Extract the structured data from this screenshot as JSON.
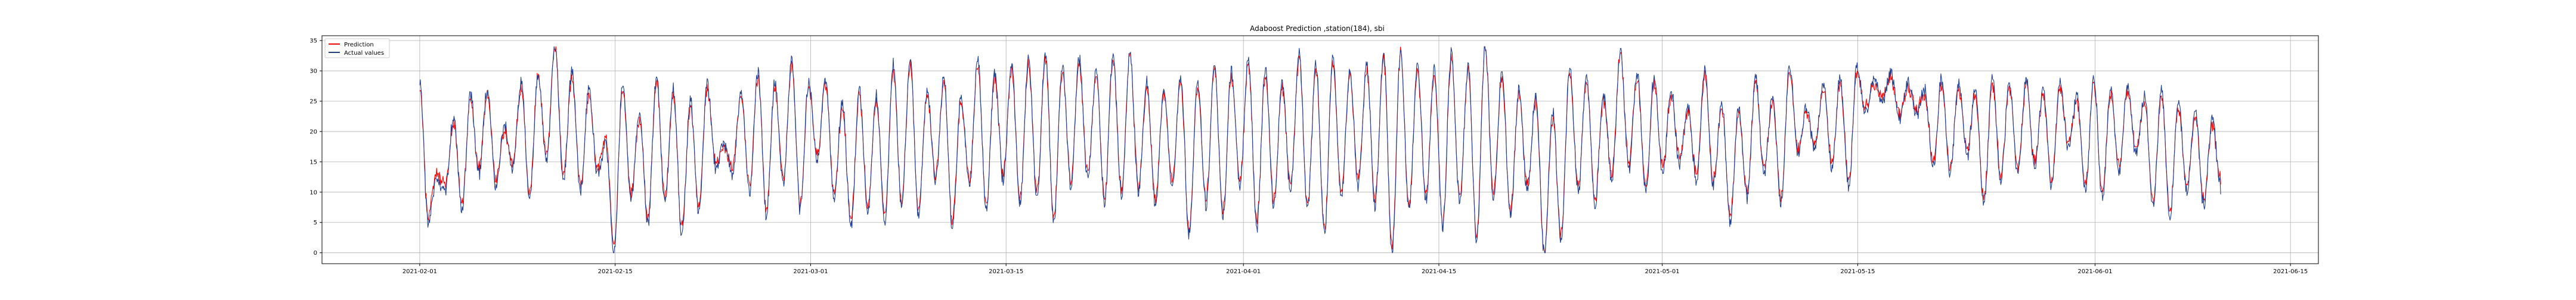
{
  "chart_data": {
    "type": "line",
    "title": "Adaboost Prediction ,station(184), sbi",
    "xlabel": "",
    "ylabel": "",
    "x_ticks": [
      "2021-02-01",
      "2021-02-15",
      "2021-03-01",
      "2021-03-15",
      "2021-04-01",
      "2021-04-15",
      "2021-05-01",
      "2021-05-15",
      "2021-06-01",
      "2021-06-15"
    ],
    "y_ticks": [
      "0",
      "5",
      "10",
      "15",
      "20",
      "25",
      "30",
      "35"
    ],
    "ylim": [
      -1.8,
      35.8
    ],
    "xlim": [
      "2021-01-25",
      "2021-06-17"
    ],
    "grid": true,
    "legend_position": "top-left",
    "series": [
      {
        "name": "Prediction",
        "color": "#ff0000",
        "start": "2021-02-01",
        "end": "2021-06-10",
        "points_per_day": 2,
        "y_range": [
          0,
          34
        ],
        "values": [
          27,
          6,
          13,
          11,
          21,
          8,
          25,
          14,
          26,
          12,
          20,
          15,
          27,
          10,
          29,
          16,
          34,
          13,
          29,
          11,
          26,
          14,
          19,
          1,
          27,
          10,
          22,
          6,
          28,
          9,
          26,
          4,
          24,
          8,
          27,
          15,
          17,
          14,
          26,
          11,
          29,
          7,
          27,
          12,
          31,
          8,
          27,
          16,
          28,
          10,
          24,
          5,
          26,
          8,
          25,
          6,
          30,
          9,
          31,
          7,
          26,
          13,
          28,
          5,
          25,
          12,
          31,
          8,
          29,
          13,
          30,
          9,
          31,
          10,
          32,
          6,
          30,
          12,
          31,
          13,
          29,
          9,
          32,
          10,
          33,
          11,
          27,
          9,
          26,
          12,
          28,
          4,
          27,
          9,
          30,
          7,
          29,
          12,
          31,
          5,
          29,
          9,
          27,
          11,
          32,
          8,
          30,
          4,
          31,
          10,
          29,
          12,
          30,
          9,
          32,
          1,
          33,
          8,
          30,
          10,
          29,
          5,
          32,
          9,
          30,
          3,
          34,
          10,
          29,
          7,
          26,
          11,
          25,
          0,
          22,
          3,
          30,
          11,
          28,
          9,
          25,
          13,
          33,
          15,
          29,
          11,
          28,
          14,
          26,
          16,
          23,
          13,
          29,
          12,
          24,
          6,
          23,
          10,
          28,
          14,
          25,
          9,
          30,
          17,
          23,
          18,
          27,
          15,
          28,
          12,
          30,
          24,
          28,
          26,
          29,
          23,
          27,
          24,
          26,
          15,
          28,
          14,
          27,
          17,
          26,
          9,
          28,
          13,
          27,
          14,
          28,
          15,
          26,
          12,
          27,
          18,
          25,
          11,
          28,
          10,
          26,
          14,
          27,
          17,
          25,
          8,
          26,
          7,
          24,
          11,
          22,
          9,
          21,
          12
        ]
      },
      {
        "name": "Actual values",
        "color": "#1f3f8f",
        "start": "2021-02-01",
        "end": "2021-06-10",
        "points_per_day": 2,
        "y_range": [
          0,
          34
        ],
        "values": [
          28,
          5,
          12,
          10,
          22,
          7,
          26,
          13,
          27,
          11,
          21,
          14,
          28,
          9,
          29,
          15,
          34,
          12,
          30,
          10,
          27,
          13,
          18,
          0,
          28,
          9,
          23,
          5,
          29,
          8,
          27,
          3,
          25,
          7,
          28,
          14,
          18,
          13,
          27,
          10,
          30,
          6,
          28,
          11,
          32,
          7,
          28,
          15,
          29,
          9,
          25,
          4,
          27,
          7,
          26,
          5,
          31,
          8,
          32,
          6,
          27,
          12,
          29,
          4,
          26,
          11,
          32,
          7,
          30,
          12,
          31,
          8,
          32,
          9,
          33,
          5,
          31,
          11,
          32,
          12,
          30,
          8,
          33,
          9,
          33,
          10,
          28,
          8,
          27,
          11,
          29,
          3,
          28,
          8,
          31,
          6,
          30,
          11,
          32,
          4,
          30,
          8,
          28,
          10,
          33,
          7,
          31,
          3,
          32,
          9,
          30,
          11,
          31,
          8,
          33,
          0,
          33,
          7,
          31,
          9,
          30,
          4,
          33,
          8,
          31,
          2,
          34,
          9,
          30,
          6,
          27,
          10,
          26,
          0,
          23,
          2,
          31,
          10,
          29,
          8,
          26,
          12,
          33,
          14,
          30,
          10,
          29,
          13,
          27,
          15,
          24,
          12,
          30,
          11,
          25,
          5,
          24,
          9,
          29,
          13,
          26,
          8,
          31,
          16,
          24,
          17,
          28,
          14,
          29,
          11,
          31,
          23,
          29,
          25,
          30,
          22,
          28,
          23,
          27,
          14,
          29,
          13,
          28,
          16,
          27,
          8,
          29,
          12,
          28,
          13,
          29,
          14,
          27,
          11,
          28,
          17,
          26,
          10,
          29,
          9,
          27,
          13,
          28,
          16,
          26,
          7,
          27,
          6,
          25,
          10,
          23,
          8,
          22,
          11
        ]
      }
    ]
  }
}
